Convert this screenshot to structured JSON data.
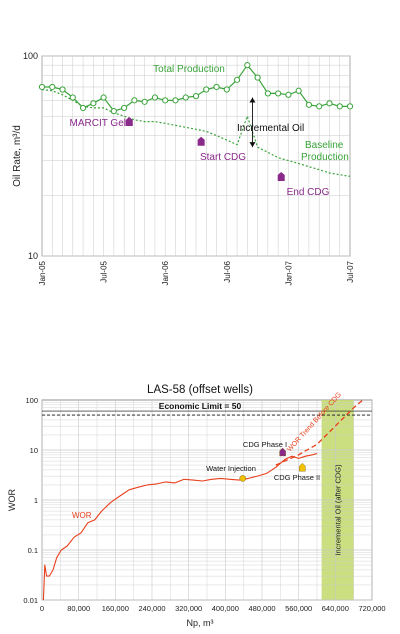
{
  "colors": {
    "green": "#3aa33a",
    "purple": "#8a2a8a",
    "red": "#e8401c",
    "band": "#c2d96a",
    "yellow": "#f2c200",
    "grid": "#c9c9c9",
    "text": "#222222"
  },
  "chart_data": [
    {
      "type": "line",
      "title": "",
      "xlabel": "",
      "ylabel": "Oil Rate, m³/d",
      "yscale": "log",
      "ylim": [
        10,
        100
      ],
      "xlim": [
        0,
        30
      ],
      "y_ticks": [
        {
          "v": 100,
          "label": "100"
        },
        {
          "v": 10,
          "label": "10"
        }
      ],
      "x_ticks": [
        {
          "v": 0,
          "label": "Jan-05"
        },
        {
          "v": 6,
          "label": "Jul-05"
        },
        {
          "v": 12,
          "label": "Jan-06"
        },
        {
          "v": 18,
          "label": "Jul-06"
        },
        {
          "v": 24,
          "label": "Jan-07"
        },
        {
          "v": 30,
          "label": "Jul-07"
        }
      ],
      "grid": true,
      "series": [
        {
          "name": "Total Production",
          "style": "solid-circles",
          "color": "#3aa33a",
          "x": [
            0,
            1,
            2,
            3,
            4,
            5,
            6,
            7,
            8,
            9,
            10,
            11,
            12,
            13,
            14,
            15,
            16,
            17,
            18,
            19,
            20,
            21,
            22,
            23,
            24,
            25,
            26,
            27,
            28,
            29,
            30
          ],
          "y": [
            70,
            70,
            68,
            62,
            55,
            58,
            62,
            53,
            55,
            60,
            59,
            62,
            60,
            60,
            62,
            63,
            68,
            70,
            68,
            76,
            90,
            78,
            65,
            65,
            64,
            67,
            57,
            56,
            58,
            56,
            56
          ]
        },
        {
          "name": "Baseline Production",
          "style": "dashed",
          "color": "#3aa33a",
          "x": [
            0,
            1,
            2,
            3,
            4,
            5,
            6,
            7,
            8,
            9,
            10,
            11,
            12,
            13,
            14,
            15,
            16,
            17,
            18,
            19,
            20,
            21,
            22,
            23,
            24,
            25,
            26,
            27,
            28,
            29,
            30
          ],
          "y": [
            68,
            67,
            64,
            60,
            56,
            55,
            55,
            52,
            50,
            48,
            47,
            47,
            46,
            45,
            44,
            43,
            42,
            40,
            38,
            36,
            50,
            35,
            33,
            31,
            30,
            29,
            28,
            27,
            26,
            25.5,
            25
          ]
        }
      ],
      "annotations": [
        {
          "text": "MARCIT Gels",
          "x": 8,
          "y": 47
        },
        {
          "text": "Start CDG",
          "x": 15,
          "y": 37
        },
        {
          "text": "Incremental Oil",
          "x": 20,
          "y": 46
        },
        {
          "text": "Baseline",
          "x": 26,
          "y": 38
        },
        {
          "text": "Production",
          "x": 26,
          "y": 33
        },
        {
          "text": "End CDG",
          "x": 22,
          "y": 25
        },
        {
          "text": "Total Production",
          "x": 16,
          "y": 80
        }
      ]
    },
    {
      "type": "line",
      "title": "LAS-58 (offset wells)",
      "xlabel": "Np, m³",
      "ylabel": "WOR",
      "yscale": "log",
      "xlim": [
        0,
        720000
      ],
      "ylim": [
        0.01,
        100
      ],
      "x_ticks": [
        {
          "v": 0,
          "label": "0"
        },
        {
          "v": 80000,
          "label": "80,000"
        },
        {
          "v": 160000,
          "label": "160,000"
        },
        {
          "v": 240000,
          "label": "240,000"
        },
        {
          "v": 320000,
          "label": "320,000"
        },
        {
          "v": 400000,
          "label": "400,000"
        },
        {
          "v": 480000,
          "label": "480,000"
        },
        {
          "v": 560000,
          "label": "560,000"
        },
        {
          "v": 640000,
          "label": "640,000"
        },
        {
          "v": 720000,
          "label": "720,000"
        }
      ],
      "y_ticks": [
        {
          "v": 100,
          "label": "100"
        },
        {
          "v": 10,
          "label": "10"
        },
        {
          "v": 1,
          "label": "1"
        },
        {
          "v": 0.1,
          "label": "0.1"
        },
        {
          "v": 0.01,
          "label": "0.01"
        }
      ],
      "grid": true,
      "economic_limit": {
        "value": 50,
        "label": "Economic Limit = 50"
      },
      "incremental_band": {
        "x_start": 610000,
        "x_end": 680000,
        "label": "Incremental Oil (after CDG)"
      },
      "series": [
        {
          "name": "WOR",
          "style": "solid",
          "color": "#e8401c",
          "x": [
            3000,
            6000,
            10000,
            16000,
            24000,
            32000,
            42000,
            55000,
            70000,
            85000,
            100000,
            115000,
            130000,
            150000,
            170000,
            190000,
            210000,
            230000,
            250000,
            270000,
            290000,
            310000,
            330000,
            350000,
            370000,
            390000,
            410000,
            430000,
            450000,
            470000,
            490000,
            510000,
            530000,
            545000,
            560000,
            575000,
            590000,
            600000
          ],
          "y": [
            0.01,
            0.05,
            0.03,
            0.03,
            0.04,
            0.07,
            0.1,
            0.12,
            0.18,
            0.22,
            0.35,
            0.4,
            0.6,
            0.9,
            1.2,
            1.6,
            1.8,
            2.0,
            2.1,
            2.3,
            2.2,
            2.6,
            2.5,
            2.4,
            2.6,
            2.7,
            2.6,
            2.5,
            2.7,
            3.0,
            3.4,
            4.5,
            6.5,
            7.5,
            6.8,
            7.5,
            8.0,
            8.5
          ]
        },
        {
          "name": "WOR Trend Before CDG",
          "style": "dashed",
          "color": "#e8401c",
          "x": [
            510000,
            560000,
            600000,
            640000,
            680000,
            700000
          ],
          "y": [
            5.0,
            8.0,
            13.0,
            30.0,
            70.0,
            110.0
          ]
        }
      ],
      "annotations": [
        {
          "text": "WOR",
          "x": 105000,
          "y": 0.12
        },
        {
          "text": "Water Injection",
          "x": 440000,
          "y": 2.7
        },
        {
          "text": "CDG Phase I",
          "x": 525000,
          "y": 10
        },
        {
          "text": "CDG Phase II",
          "x": 570000,
          "y": 5
        },
        {
          "text": "WOR Trend Before CDG",
          "x": 560000,
          "y": 10
        }
      ]
    }
  ]
}
